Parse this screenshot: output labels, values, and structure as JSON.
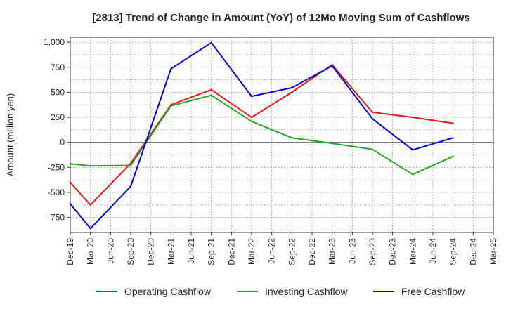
{
  "chart_data": {
    "type": "line",
    "title": "[2813]  Trend of Change in Amount (YoY) of 12Mo Moving Sum of Cashflows",
    "ylabel": "Amount (million yen)",
    "xlabel": "",
    "ylim": [
      -900,
      1050
    ],
    "yticks": [
      -750,
      -500,
      -250,
      0,
      250,
      500,
      750,
      1000
    ],
    "ytick_labels": [
      "-750",
      "-500",
      "-250",
      "0",
      "250",
      "500",
      "750",
      "1,000"
    ],
    "categories": [
      "Dec-19",
      "Mar-20",
      "Jun-20",
      "Sep-20",
      "Dec-20",
      "Mar-21",
      "Jun-21",
      "Sep-21",
      "Dec-21",
      "Mar-22",
      "Jun-22",
      "Sep-22",
      "Dec-22",
      "Mar-23",
      "Jun-23",
      "Sep-23",
      "Dec-23",
      "Mar-24",
      "Jun-24",
      "Sep-24",
      "Dec-24",
      "Mar-25"
    ],
    "series": [
      {
        "name": "Operating Cashflow",
        "color": "#e31a1c",
        "values": [
          -400,
          -625,
          null,
          -210,
          null,
          375,
          null,
          525,
          null,
          250,
          null,
          500,
          null,
          775,
          null,
          300,
          null,
          250,
          null,
          190,
          null,
          null
        ]
      },
      {
        "name": "Investing Cashflow",
        "color": "#2ca02c",
        "values": [
          -215,
          -235,
          null,
          -230,
          null,
          365,
          null,
          470,
          null,
          210,
          null,
          45,
          null,
          -10,
          null,
          -70,
          null,
          -320,
          null,
          -140,
          null,
          null
        ]
      },
      {
        "name": "Free Cashflow",
        "color": "#0000cc",
        "values": [
          -615,
          -860,
          null,
          -440,
          null,
          735,
          null,
          995,
          null,
          460,
          null,
          545,
          null,
          765,
          null,
          235,
          null,
          -75,
          null,
          45,
          null,
          null
        ]
      }
    ],
    "grid": true,
    "legend": "bottom"
  }
}
